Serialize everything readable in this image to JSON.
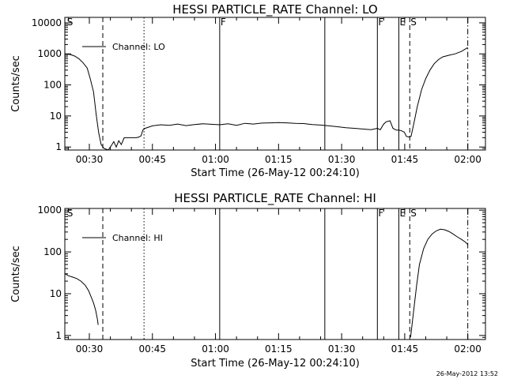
{
  "footer": {
    "timestamp": "26-May-2012 13:52"
  },
  "chart_data": [
    {
      "type": "line",
      "title": "HESSI PARTICLE_RATE Channel: LO",
      "xlabel": "Start Time (26-May-12 00:24:10)",
      "ylabel": "Counts/sec",
      "yscale": "log",
      "xlim": [
        24.17,
        124.2
      ],
      "ylim": [
        0.8,
        15000
      ],
      "x_tick_labels": [
        "00:30",
        "00:45",
        "01:00",
        "01:15",
        "01:30",
        "01:45",
        "02:00"
      ],
      "x_tick_values": [
        30,
        45,
        60,
        75,
        90,
        105,
        120
      ],
      "y_tick_labels": [
        "1",
        "10",
        "100",
        "1000",
        "10000"
      ],
      "y_tick_values": [
        1,
        10,
        100,
        1000,
        10000
      ],
      "legend": {
        "label": "Channel: LO",
        "placement": "top-left"
      },
      "series": [
        {
          "name": "Channel: LO",
          "x": [
            24.2,
            25.5,
            26.5,
            27.5,
            28.5,
            29.5,
            30.2,
            31.0,
            31.6,
            32.2,
            32.8,
            33.5,
            34.5,
            35.2,
            35.8,
            36.4,
            37.0,
            37.6,
            38.3,
            39.0,
            40.0,
            40.6,
            41.2,
            41.8,
            42.3,
            42.7,
            43.3,
            45.0,
            47.0,
            49.0,
            51.0,
            53.0,
            55.0,
            57.0,
            59.0,
            61.0,
            63.0,
            65.0,
            67.0,
            69.0,
            71.0,
            73.0,
            75.0,
            77.0,
            79.0,
            81.0,
            83.0,
            85.0,
            87.0,
            89.0,
            91.0,
            93.0,
            95.0,
            97.0,
            98.5,
            99.2,
            100.0,
            100.6,
            101.5,
            102.2,
            103.0,
            103.6,
            104.3,
            104.9,
            105.4,
            105.9,
            106.5,
            107.2,
            108.0,
            109.0,
            110.0,
            111.0,
            112.0,
            113.0,
            114.0,
            115.5,
            117.0,
            118.5,
            120.0
          ],
          "values": [
            1000,
            950,
            850,
            700,
            520,
            350,
            160,
            60,
            12,
            3,
            1.2,
            0.9,
            0.8,
            1.1,
            1.5,
            1.0,
            1.6,
            1.2,
            2.0,
            2.0,
            2.0,
            2.0,
            2.0,
            2.1,
            2.3,
            3.5,
            4.0,
            4.8,
            5.2,
            5.0,
            5.5,
            4.9,
            5.3,
            5.6,
            5.4,
            5.2,
            5.6,
            5.0,
            5.8,
            5.5,
            5.9,
            6.0,
            6.1,
            6.0,
            5.8,
            5.7,
            5.3,
            5.1,
            4.8,
            4.5,
            4.2,
            4.0,
            3.8,
            3.6,
            4.0,
            3.6,
            5.5,
            6.5,
            7.0,
            4.0,
            3.5,
            3.5,
            3.3,
            3.0,
            2.2,
            2.1,
            2.2,
            6.0,
            20,
            70,
            160,
            300,
            480,
            650,
            800,
            900,
            1000,
            1200,
            1600
          ]
        }
      ],
      "annotations": [
        {
          "label": "S",
          "x": 24.5,
          "style": "none"
        },
        {
          "label": "",
          "x": 33.2,
          "style": "dashed"
        },
        {
          "label": "",
          "x": 43.0,
          "style": "dotted"
        },
        {
          "label": "F",
          "x": 61.0,
          "style": "solid"
        },
        {
          "label": "",
          "x": 86.0,
          "style": "solid"
        },
        {
          "label": "F",
          "x": 98.5,
          "style": "solid"
        },
        {
          "label": "E",
          "x": 103.6,
          "style": "solid"
        },
        {
          "label": "S",
          "x": 106.2,
          "style": "dashed"
        },
        {
          "label": "",
          "x": 120.0,
          "style": "dashdot"
        }
      ]
    },
    {
      "type": "line",
      "title": "HESSI PARTICLE_RATE Channel: HI",
      "xlabel": "Start Time (26-May-12 00:24:10)",
      "ylabel": "Counts/sec",
      "yscale": "log",
      "xlim": [
        24.17,
        124.2
      ],
      "ylim": [
        0.8,
        1100
      ],
      "x_tick_labels": [
        "00:30",
        "00:45",
        "01:00",
        "01:15",
        "01:30",
        "01:45",
        "02:00"
      ],
      "x_tick_values": [
        30,
        45,
        60,
        75,
        90,
        105,
        120
      ],
      "y_tick_labels": [
        "1",
        "10",
        "100",
        "1000"
      ],
      "y_tick_values": [
        1,
        10,
        100,
        1000
      ],
      "legend": {
        "label": "Channel: HI",
        "placement": "top-left"
      },
      "series": [
        {
          "name": "Channel: HI",
          "x": [
            24.2,
            25.0,
            26.0,
            27.0,
            28.0,
            29.0,
            29.8,
            30.5,
            31.0,
            31.5,
            31.9,
            32.1
          ],
          "values": [
            30,
            27,
            25,
            23,
            20,
            16,
            12,
            8,
            6,
            4,
            2.5,
            1.8
          ]
        },
        {
          "name": "Channel: HI",
          "x": [
            106.4,
            107.0,
            107.8,
            108.5,
            109.5,
            110.5,
            111.5,
            112.5,
            113.5,
            114.5,
            115.5,
            116.5,
            117.5,
            118.5,
            119.5,
            120.0
          ],
          "values": [
            0.9,
            3,
            15,
            50,
            120,
            200,
            270,
            320,
            350,
            340,
            310,
            270,
            230,
            200,
            170,
            150
          ]
        }
      ],
      "annotations": [
        {
          "label": "S",
          "x": 24.5,
          "style": "none"
        },
        {
          "label": "",
          "x": 33.2,
          "style": "dashed"
        },
        {
          "label": "",
          "x": 43.0,
          "style": "dotted"
        },
        {
          "label": "",
          "x": 61.0,
          "style": "solid"
        },
        {
          "label": "",
          "x": 86.0,
          "style": "solid"
        },
        {
          "label": "F",
          "x": 98.5,
          "style": "solid"
        },
        {
          "label": "E",
          "x": 103.6,
          "style": "solid"
        },
        {
          "label": "S",
          "x": 106.2,
          "style": "dashed"
        },
        {
          "label": "",
          "x": 120.0,
          "style": "dashdot"
        }
      ]
    }
  ]
}
